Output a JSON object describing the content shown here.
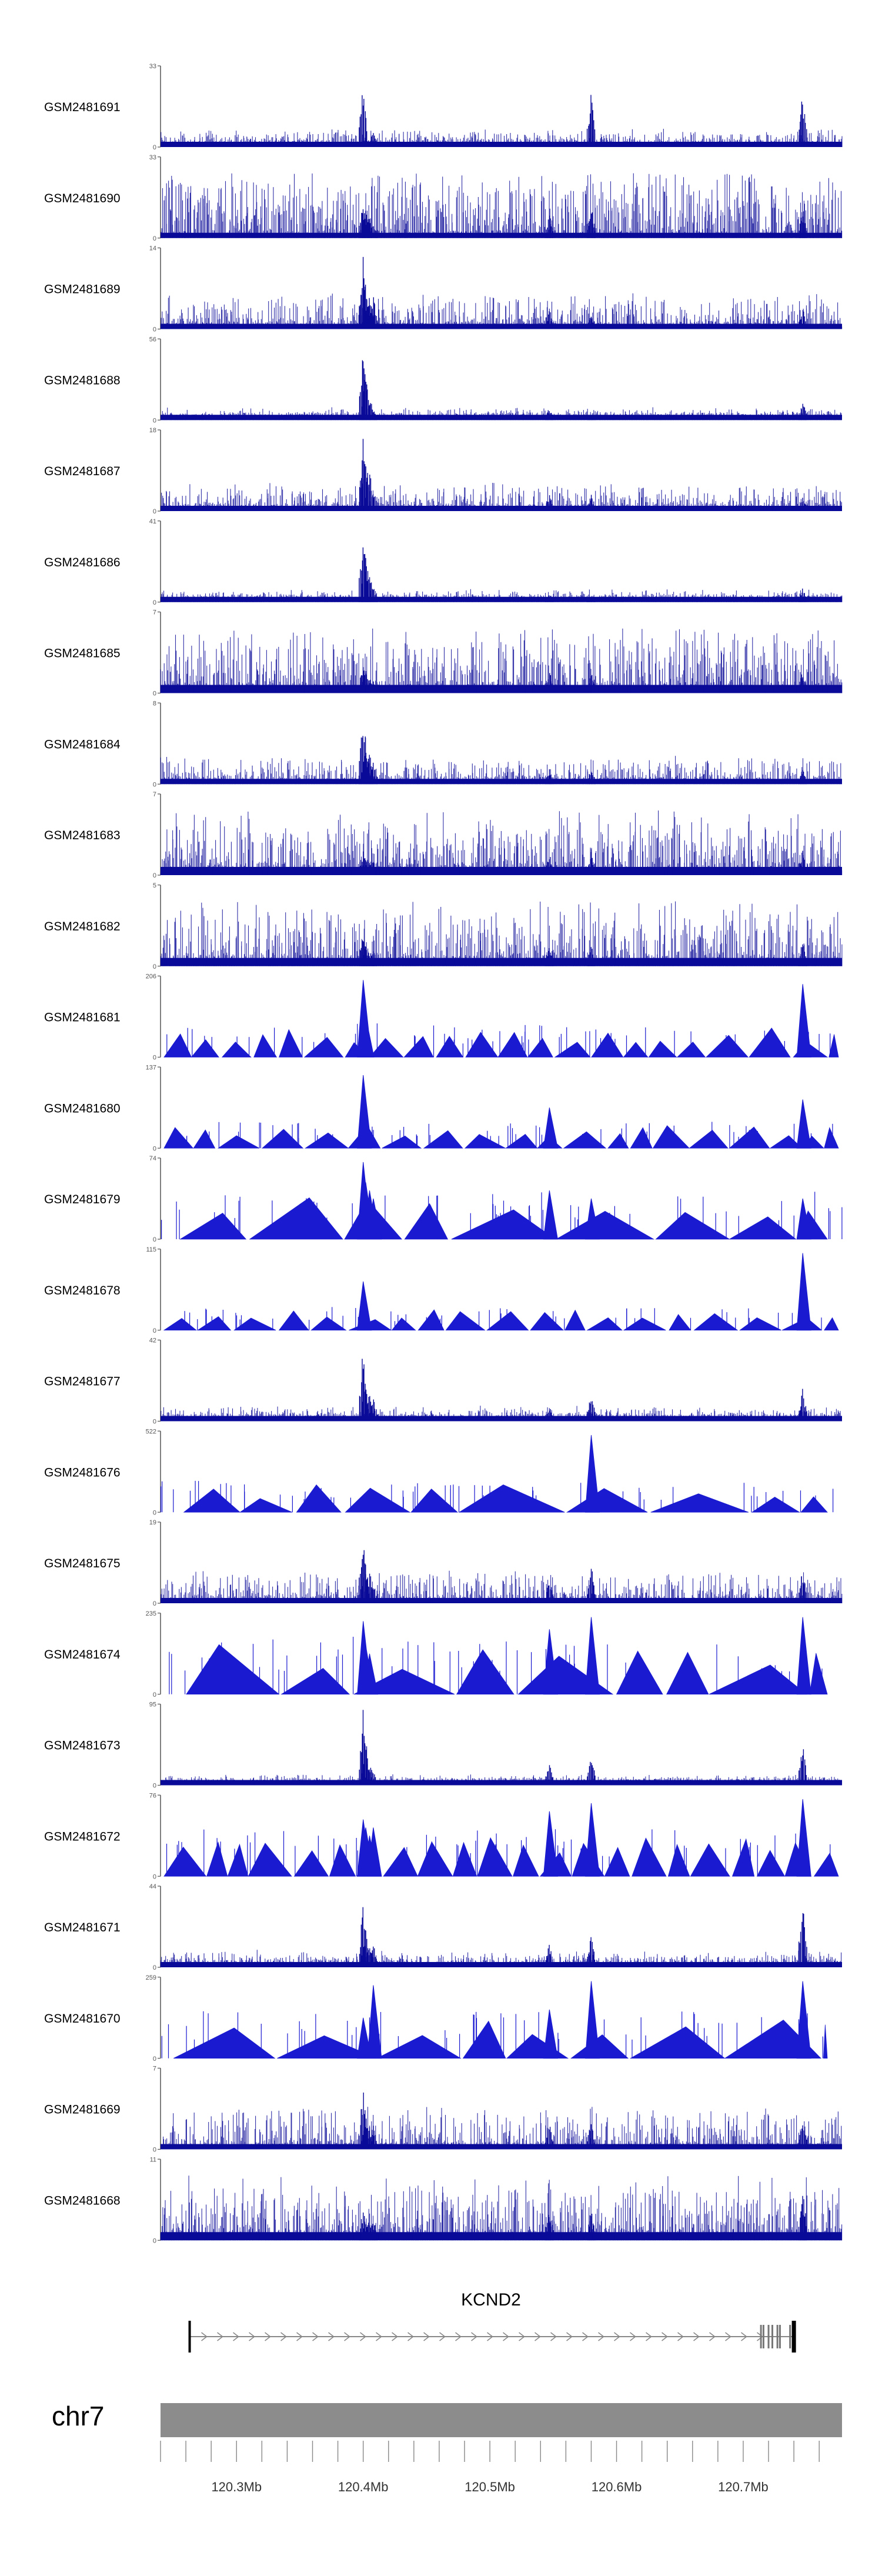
{
  "chart_data": {
    "type": "area",
    "title": "",
    "xlabel": "",
    "ylabel": "",
    "chromosome": "chr7",
    "xlim_mb": [
      120.24,
      120.778
    ],
    "x_ticks": [
      {
        "value": 120.3,
        "label": "120.3Mb"
      },
      {
        "value": 120.4,
        "label": "120.4Mb"
      },
      {
        "value": 120.5,
        "label": "120.5Mb"
      },
      {
        "value": 120.6,
        "label": "120.6Mb"
      },
      {
        "value": 120.7,
        "label": "120.7Mb"
      }
    ],
    "minor_tick_step_mb": 0.02,
    "gene": {
      "name": "KCND2",
      "start_mb": 120.263,
      "end_mb": 120.74,
      "strand": "+",
      "exons_mb": [
        120.263,
        120.714,
        120.716,
        120.72,
        120.723,
        120.727,
        120.729,
        120.737,
        120.74
      ]
    },
    "peak_positions_mb": [
      120.4,
      120.402,
      120.405,
      120.408,
      120.547,
      120.58,
      120.747
    ],
    "tracks": [
      {
        "sample": "GSM2481691",
        "ymin": 0,
        "ymax": 33,
        "style": "dense",
        "noise": 0.08,
        "peaks": [
          0.8,
          0.15,
          0.1,
          0.2,
          0.1,
          0.7,
          0.7
        ]
      },
      {
        "sample": "GSM2481690",
        "ymin": 0,
        "ymax": 33,
        "style": "dense-spiky",
        "noise": 0.35,
        "peaks": [
          0.5,
          0.4,
          0.3,
          0.2,
          0.3,
          0.4,
          0.4
        ]
      },
      {
        "sample": "GSM2481689",
        "ymin": 0,
        "ymax": 14,
        "style": "dense",
        "noise": 0.2,
        "peaks": [
          0.9,
          0.6,
          0.5,
          0.4,
          0.25,
          0.2,
          0.3
        ]
      },
      {
        "sample": "GSM2481688",
        "ymin": 0,
        "ymax": 56,
        "style": "dense",
        "noise": 0.04,
        "peaks": [
          0.95,
          0.6,
          0.3,
          0.15,
          0.15,
          0.05,
          0.25
        ]
      },
      {
        "sample": "GSM2481687",
        "ymin": 0,
        "ymax": 18,
        "style": "dense",
        "noise": 0.15,
        "peaks": [
          0.95,
          0.8,
          0.5,
          0.3,
          0.2,
          0.2,
          0.2
        ]
      },
      {
        "sample": "GSM2481686",
        "ymin": 0,
        "ymax": 41,
        "style": "dense",
        "noise": 0.04,
        "peaks": [
          0.95,
          0.7,
          0.4,
          0.2,
          0.1,
          0.05,
          0.2
        ]
      },
      {
        "sample": "GSM2481685",
        "ymin": 0,
        "ymax": 7,
        "style": "dense-tall",
        "noise": 0.35,
        "peaks": [
          0.4,
          0.3,
          0.2,
          0.2,
          0.3,
          0.3,
          0.3
        ]
      },
      {
        "sample": "GSM2481684",
        "ymin": 0,
        "ymax": 8,
        "style": "dense",
        "noise": 0.15,
        "peaks": [
          0.9,
          0.6,
          0.4,
          0.3,
          0.2,
          0.2,
          0.2
        ]
      },
      {
        "sample": "GSM2481683",
        "ymin": 0,
        "ymax": 7,
        "style": "dense-tall",
        "noise": 0.3,
        "peaks": [
          0.3,
          0.3,
          0.2,
          0.2,
          0.3,
          0.3,
          0.3
        ]
      },
      {
        "sample": "GSM2481682",
        "ymin": 0,
        "ymax": 5,
        "style": "dense-tall",
        "noise": 0.3,
        "peaks": [
          0.4,
          0.3,
          0.2,
          0.2,
          0.3,
          0.3,
          0.3
        ]
      },
      {
        "sample": "GSM2481681",
        "ymin": 0,
        "ymax": 206,
        "style": "triangles",
        "baseline": 0.32,
        "peaks": [
          0.95,
          0.5,
          0.4,
          0.3,
          0.3,
          0.3,
          0.9
        ]
      },
      {
        "sample": "GSM2481680",
        "ymin": 0,
        "ymax": 137,
        "style": "triangles",
        "baseline": 0.25,
        "peaks": [
          0.9,
          0.4,
          0.3,
          0.3,
          0.5,
          0.3,
          0.6
        ]
      },
      {
        "sample": "GSM2481679",
        "ymin": 0,
        "ymax": 74,
        "style": "triangles-wide",
        "baseline": 0.45,
        "peaks": [
          0.95,
          0.7,
          0.6,
          0.5,
          0.6,
          0.5,
          0.5
        ]
      },
      {
        "sample": "GSM2481678",
        "ymin": 0,
        "ymax": 115,
        "style": "triangles",
        "baseline": 0.22,
        "peaks": [
          0.6,
          0.3,
          0.3,
          0.2,
          0.3,
          0.3,
          0.95
        ]
      },
      {
        "sample": "GSM2481677",
        "ymin": 0,
        "ymax": 42,
        "style": "dense",
        "noise": 0.06,
        "peaks": [
          0.95,
          0.5,
          0.4,
          0.3,
          0.2,
          0.4,
          0.4
        ]
      },
      {
        "sample": "GSM2481676",
        "ymin": 0,
        "ymax": 522,
        "style": "triangles-wide",
        "baseline": 0.3,
        "peaks": [
          0.4,
          0.3,
          0.3,
          0.3,
          0.3,
          0.95,
          0.3
        ]
      },
      {
        "sample": "GSM2481675",
        "ymin": 0,
        "ymax": 19,
        "style": "dense",
        "noise": 0.18,
        "peaks": [
          0.95,
          0.5,
          0.4,
          0.3,
          0.3,
          0.5,
          0.4
        ]
      },
      {
        "sample": "GSM2481674",
        "ymin": 0,
        "ymax": 235,
        "style": "triangles-wide",
        "baseline": 0.55,
        "peaks": [
          0.9,
          0.6,
          0.5,
          0.4,
          0.8,
          0.95,
          0.95
        ]
      },
      {
        "sample": "GSM2481673",
        "ymin": 0,
        "ymax": 95,
        "style": "dense",
        "noise": 0.03,
        "peaks": [
          0.95,
          0.6,
          0.3,
          0.2,
          0.3,
          0.4,
          0.55
        ]
      },
      {
        "sample": "GSM2481672",
        "ymin": 0,
        "ymax": 76,
        "style": "triangles",
        "baseline": 0.45,
        "peaks": [
          0.7,
          0.6,
          0.5,
          0.6,
          0.8,
          0.9,
          0.95
        ]
      },
      {
        "sample": "GSM2481671",
        "ymin": 0,
        "ymax": 44,
        "style": "dense",
        "noise": 0.07,
        "peaks": [
          0.8,
          0.5,
          0.3,
          0.3,
          0.3,
          0.4,
          0.95
        ]
      },
      {
        "sample": "GSM2481670",
        "ymin": 0,
        "ymax": 259,
        "style": "triangles-wide",
        "baseline": 0.45,
        "peaks": [
          0.5,
          0.4,
          0.4,
          0.9,
          0.6,
          0.95,
          0.95
        ]
      },
      {
        "sample": "GSM2481669",
        "ymin": 0,
        "ymax": 7,
        "style": "dense",
        "noise": 0.25,
        "peaks": [
          0.8,
          0.4,
          0.3,
          0.3,
          0.4,
          0.4,
          0.4
        ]
      },
      {
        "sample": "GSM2481668",
        "ymin": 0,
        "ymax": 11,
        "style": "dense-tall",
        "noise": 0.3,
        "peaks": [
          0.4,
          0.3,
          0.3,
          0.3,
          0.4,
          0.4,
          0.7
        ]
      }
    ]
  },
  "colors": {
    "signal": "#1a1ad1",
    "signal_dense": "#0a0a99",
    "signal_light": "#6a6ae6",
    "axis": "#555555",
    "gene": "#000000",
    "gene_intron": "#888888",
    "ideogram": "#8c8c8c",
    "tick": "#888888",
    "text": "#000000"
  }
}
